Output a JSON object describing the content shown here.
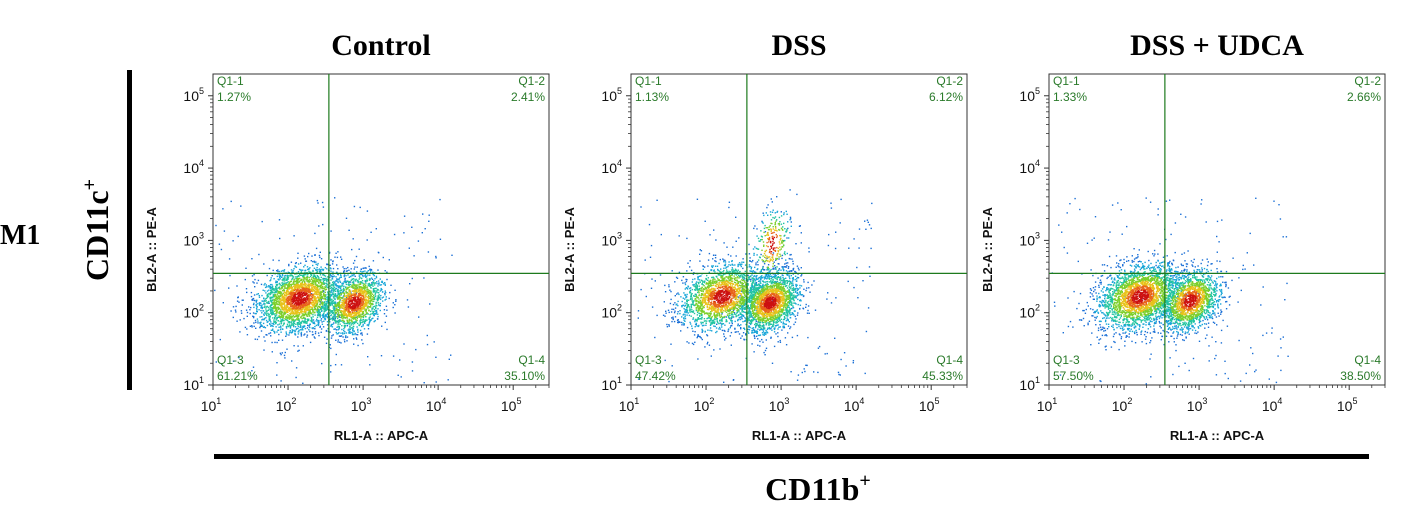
{
  "figure": {
    "row_label": "M1",
    "y_marker": "CD11c",
    "y_marker_sup": "+",
    "x_marker": "CD11b",
    "x_marker_sup": "+"
  },
  "chart_data": [
    {
      "type": "scatter",
      "title": "Control",
      "xlabel": "RL1-A :: APC-A",
      "ylabel": "BL2-A :: PE-A",
      "x_scale": "log",
      "y_scale": "log",
      "xlim": [
        10,
        300000
      ],
      "ylim": [
        10,
        200000
      ],
      "x_ticks": [
        {
          "base": "10",
          "exp": "1"
        },
        {
          "base": "10",
          "exp": "2"
        },
        {
          "base": "10",
          "exp": "3"
        },
        {
          "base": "10",
          "exp": "4"
        },
        {
          "base": "10",
          "exp": "5"
        }
      ],
      "y_ticks": [
        {
          "base": "10",
          "exp": "1"
        },
        {
          "base": "10",
          "exp": "2"
        },
        {
          "base": "10",
          "exp": "3"
        },
        {
          "base": "10",
          "exp": "4"
        },
        {
          "base": "10",
          "exp": "5"
        }
      ],
      "gate": {
        "x": 350,
        "y": 350
      },
      "quadrants": [
        {
          "name": "Q1-1",
          "value": "1.27%",
          "position": "top-left"
        },
        {
          "name": "Q1-2",
          "value": "2.41%",
          "position": "top-right"
        },
        {
          "name": "Q1-3",
          "value": "61.21%",
          "position": "bottom-left"
        },
        {
          "name": "Q1-4",
          "value": "35.10%",
          "position": "bottom-right"
        }
      ],
      "populations": [
        {
          "x": 140,
          "y": 160,
          "spread_x": 0.28,
          "spread_y": 0.22,
          "fraction": 0.61
        },
        {
          "x": 750,
          "y": 140,
          "spread_x": 0.2,
          "spread_y": 0.2,
          "fraction": 0.35
        }
      ]
    },
    {
      "type": "scatter",
      "title": "DSS",
      "xlabel": "RL1-A :: APC-A",
      "ylabel": "BL2-A :: PE-A",
      "x_scale": "log",
      "y_scale": "log",
      "xlim": [
        10,
        300000
      ],
      "ylim": [
        10,
        200000
      ],
      "x_ticks": [
        {
          "base": "10",
          "exp": "1"
        },
        {
          "base": "10",
          "exp": "2"
        },
        {
          "base": "10",
          "exp": "3"
        },
        {
          "base": "10",
          "exp": "4"
        },
        {
          "base": "10",
          "exp": "5"
        }
      ],
      "y_ticks": [
        {
          "base": "10",
          "exp": "1"
        },
        {
          "base": "10",
          "exp": "2"
        },
        {
          "base": "10",
          "exp": "3"
        },
        {
          "base": "10",
          "exp": "4"
        },
        {
          "base": "10",
          "exp": "5"
        }
      ],
      "gate": {
        "x": 350,
        "y": 350
      },
      "quadrants": [
        {
          "name": "Q1-1",
          "value": "1.13%",
          "position": "top-left"
        },
        {
          "name": "Q1-2",
          "value": "6.12%",
          "position": "top-right"
        },
        {
          "name": "Q1-3",
          "value": "47.42%",
          "position": "bottom-left"
        },
        {
          "name": "Q1-4",
          "value": "45.33%",
          "position": "bottom-right"
        }
      ],
      "populations": [
        {
          "x": 160,
          "y": 170,
          "spread_x": 0.28,
          "spread_y": 0.22,
          "fraction": 0.47
        },
        {
          "x": 700,
          "y": 140,
          "spread_x": 0.2,
          "spread_y": 0.2,
          "fraction": 0.45
        },
        {
          "x": 750,
          "y": 900,
          "spread_x": 0.12,
          "spread_y": 0.25,
          "fraction": 0.06
        }
      ]
    },
    {
      "type": "scatter",
      "title": "DSS + UDCA",
      "xlabel": "RL1-A :: APC-A",
      "ylabel": "BL2-A :: PE-A",
      "x_scale": "log",
      "y_scale": "log",
      "xlim": [
        10,
        300000
      ],
      "ylim": [
        10,
        200000
      ],
      "x_ticks": [
        {
          "base": "10",
          "exp": "1"
        },
        {
          "base": "10",
          "exp": "2"
        },
        {
          "base": "10",
          "exp": "3"
        },
        {
          "base": "10",
          "exp": "4"
        },
        {
          "base": "10",
          "exp": "5"
        }
      ],
      "y_ticks": [
        {
          "base": "10",
          "exp": "1"
        },
        {
          "base": "10",
          "exp": "2"
        },
        {
          "base": "10",
          "exp": "3"
        },
        {
          "base": "10",
          "exp": "4"
        },
        {
          "base": "10",
          "exp": "5"
        }
      ],
      "gate": {
        "x": 350,
        "y": 350
      },
      "quadrants": [
        {
          "name": "Q1-1",
          "value": "1.33%",
          "position": "top-left"
        },
        {
          "name": "Q1-2",
          "value": "2.66%",
          "position": "top-right"
        },
        {
          "name": "Q1-3",
          "value": "57.50%",
          "position": "bottom-left"
        },
        {
          "name": "Q1-4",
          "value": "38.50%",
          "position": "bottom-right"
        }
      ],
      "populations": [
        {
          "x": 160,
          "y": 170,
          "spread_x": 0.28,
          "spread_y": 0.22,
          "fraction": 0.575
        },
        {
          "x": 750,
          "y": 150,
          "spread_x": 0.2,
          "spread_y": 0.2,
          "fraction": 0.385
        }
      ]
    }
  ],
  "colors": {
    "gate": "#1d7a1d",
    "quadrant_text": "#2a7a2a",
    "axis": "#333333",
    "density": [
      "#1a6fd6",
      "#18a6d8",
      "#20c4a0",
      "#7ccf2a",
      "#e8c21a",
      "#e8641a",
      "#cc1111"
    ]
  }
}
